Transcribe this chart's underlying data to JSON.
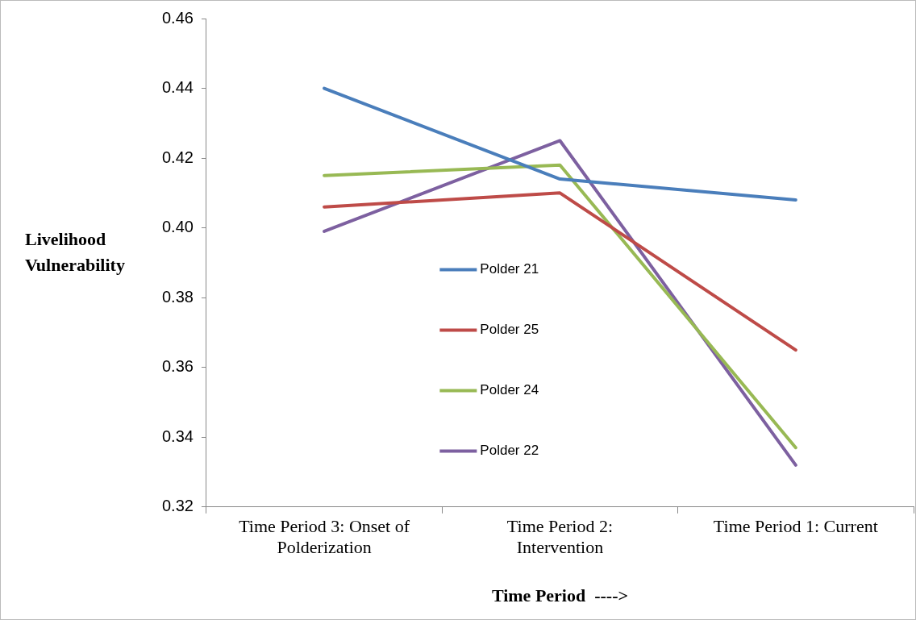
{
  "chart_data": {
    "type": "line",
    "xlabel": "Time Period  ---->",
    "ylabel": "Livelihood Vulnerability",
    "categories": [
      "Time Period 3: Onset of Polderization",
      "Time Period 2: Intervention",
      "Time Period 1: Current"
    ],
    "series": [
      {
        "name": "Polder 21",
        "color": "#4a7ebb",
        "values": [
          0.44,
          0.414,
          0.408
        ]
      },
      {
        "name": "Polder 25",
        "color": "#be4b48",
        "values": [
          0.406,
          0.41,
          0.365
        ]
      },
      {
        "name": "Polder 24",
        "color": "#98b954",
        "values": [
          0.415,
          0.418,
          0.337
        ]
      },
      {
        "name": "Polder 22",
        "color": "#7d60a0",
        "values": [
          0.399,
          0.425,
          0.332
        ]
      }
    ],
    "ylim": [
      0.32,
      0.46
    ],
    "yticks": [
      0.32,
      0.34,
      0.36,
      0.38,
      {
        "value": 0.4,
        "label": "0.40"
      },
      0.42,
      0.44,
      0.46
    ],
    "grid": false,
    "legend": "center",
    "marker": "none",
    "line_style": "solid"
  }
}
